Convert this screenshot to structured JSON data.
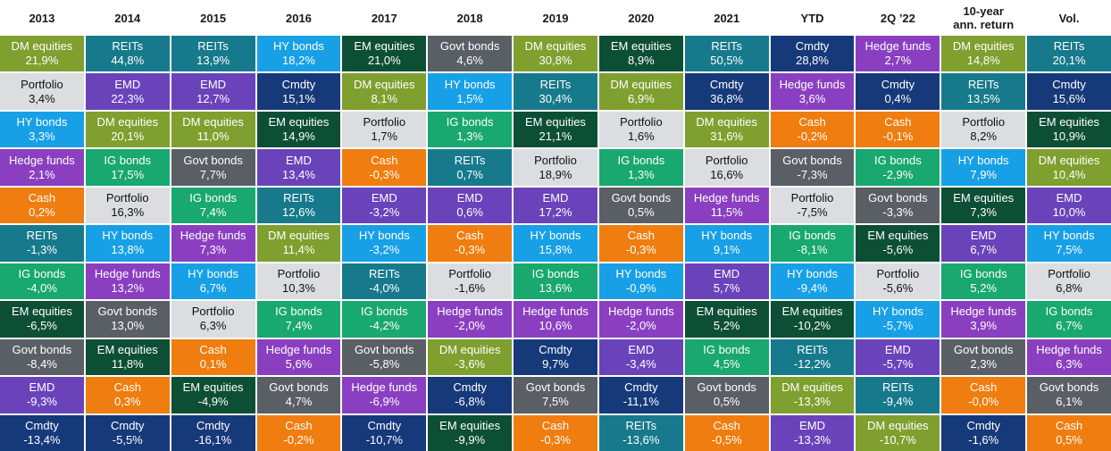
{
  "chart_data": {
    "type": "table",
    "headers": [
      "2013",
      "2014",
      "2015",
      "2016",
      "2017",
      "2018",
      "2019",
      "2020",
      "2021",
      "YTD",
      "2Q ’22",
      "10-year ann. return",
      "Vol."
    ],
    "header_lines": [
      [
        "2013"
      ],
      [
        "2014"
      ],
      [
        "2015"
      ],
      [
        "2016"
      ],
      [
        "2017"
      ],
      [
        "2018"
      ],
      [
        "2019"
      ],
      [
        "2020"
      ],
      [
        "2021"
      ],
      [
        "YTD"
      ],
      [
        "2Q ’22"
      ],
      [
        "10-year",
        "ann. return"
      ],
      [
        "Vol."
      ]
    ],
    "colors": {
      "DM equities": "#7f9f2f",
      "REITs": "#177a8c",
      "HY bonds": "#18a0e6",
      "EM equities": "#0d4f35",
      "Govt bonds": "#5a5f66",
      "Cmdty": "#16397a",
      "Hedge funds": "#8a3fc0",
      "Portfolio": "#dcdde0",
      "EMD": "#6a43bb",
      "IG bonds": "#19a86f",
      "Cash": "#ef7d0f"
    },
    "light_text_classes": [
      "Portfolio"
    ],
    "columns": [
      [
        [
          "DM equities",
          "21,9%"
        ],
        [
          "Portfolio",
          "3,4%"
        ],
        [
          "HY bonds",
          "3,3%"
        ],
        [
          "Hedge funds",
          "2,1%"
        ],
        [
          "Cash",
          "0,2%"
        ],
        [
          "REITs",
          "-1,3%"
        ],
        [
          "IG bonds",
          "-4,0%"
        ],
        [
          "EM equities",
          "-6,5%"
        ],
        [
          "Govt bonds",
          "-8,4%"
        ],
        [
          "EMD",
          "-9,3%"
        ],
        [
          "Cmdty",
          "-13,4%"
        ]
      ],
      [
        [
          "REITs",
          "44,8%"
        ],
        [
          "EMD",
          "22,3%"
        ],
        [
          "DM equities",
          "20,1%"
        ],
        [
          "IG bonds",
          "17,5%"
        ],
        [
          "Portfolio",
          "16,3%"
        ],
        [
          "HY bonds",
          "13,8%"
        ],
        [
          "Hedge funds",
          "13,2%"
        ],
        [
          "Govt bonds",
          "13,0%"
        ],
        [
          "EM equities",
          "11,8%"
        ],
        [
          "Cash",
          "0,3%"
        ],
        [
          "Cmdty",
          "-5,5%"
        ]
      ],
      [
        [
          "REITs",
          "13,9%"
        ],
        [
          "EMD",
          "12,7%"
        ],
        [
          "DM equities",
          "11,0%"
        ],
        [
          "Govt bonds",
          "7,7%"
        ],
        [
          "IG bonds",
          "7,4%"
        ],
        [
          "Hedge funds",
          "7,3%"
        ],
        [
          "HY bonds",
          "6,7%"
        ],
        [
          "Portfolio",
          "6,3%"
        ],
        [
          "Cash",
          "0,1%"
        ],
        [
          "EM equities",
          "-4,9%"
        ],
        [
          "Cmdty",
          "-16,1%"
        ]
      ],
      [
        [
          "HY bonds",
          "18,2%"
        ],
        [
          "Cmdty",
          "15,1%"
        ],
        [
          "EM equities",
          "14,9%"
        ],
        [
          "EMD",
          "13,4%"
        ],
        [
          "REITs",
          "12,6%"
        ],
        [
          "DM equities",
          "11,4%"
        ],
        [
          "Portfolio",
          "10,3%"
        ],
        [
          "IG bonds",
          "7,4%"
        ],
        [
          "Hedge funds",
          "5,6%"
        ],
        [
          "Govt bonds",
          "4,7%"
        ],
        [
          "Cash",
          "-0,2%"
        ]
      ],
      [
        [
          "EM equities",
          "21,0%"
        ],
        [
          "DM equities",
          "8,1%"
        ],
        [
          "Portfolio",
          "1,7%"
        ],
        [
          "Cash",
          "-0,3%"
        ],
        [
          "EMD",
          "-3,2%"
        ],
        [
          "HY bonds",
          "-3,2%"
        ],
        [
          "REITs",
          "-4,0%"
        ],
        [
          "IG bonds",
          "-4,2%"
        ],
        [
          "Govt bonds",
          "-5,8%"
        ],
        [
          "Hedge funds",
          "-6,9%"
        ],
        [
          "Cmdty",
          "-10,7%"
        ]
      ],
      [
        [
          "Govt bonds",
          "4,6%"
        ],
        [
          "HY bonds",
          "1,5%"
        ],
        [
          "IG bonds",
          "1,3%"
        ],
        [
          "REITs",
          "0,7%"
        ],
        [
          "EMD",
          "0,6%"
        ],
        [
          "Cash",
          "-0,3%"
        ],
        [
          "Portfolio",
          "-1,6%"
        ],
        [
          "Hedge funds",
          "-2,0%"
        ],
        [
          "DM equities",
          "-3,6%"
        ],
        [
          "Cmdty",
          "-6,8%"
        ],
        [
          "EM equities",
          "-9,9%"
        ]
      ],
      [
        [
          "DM equities",
          "30,8%"
        ],
        [
          "REITs",
          "30,4%"
        ],
        [
          "EM equities",
          "21,1%"
        ],
        [
          "Portfolio",
          "18,9%"
        ],
        [
          "EMD",
          "17,2%"
        ],
        [
          "HY bonds",
          "15,8%"
        ],
        [
          "IG bonds",
          "13,6%"
        ],
        [
          "Hedge funds",
          "10,6%"
        ],
        [
          "Cmdty",
          "9,7%"
        ],
        [
          "Govt bonds",
          "7,5%"
        ],
        [
          "Cash",
          "-0,3%"
        ]
      ],
      [
        [
          "EM equities",
          "8,9%"
        ],
        [
          "DM equities",
          "6,9%"
        ],
        [
          "Portfolio",
          "1,6%"
        ],
        [
          "IG bonds",
          "1,3%"
        ],
        [
          "Govt bonds",
          "0,5%"
        ],
        [
          "Cash",
          "-0,3%"
        ],
        [
          "HY bonds",
          "-0,9%"
        ],
        [
          "Hedge funds",
          "-2,0%"
        ],
        [
          "EMD",
          "-3,4%"
        ],
        [
          "Cmdty",
          "-11,1%"
        ],
        [
          "REITs",
          "-13,6%"
        ]
      ],
      [
        [
          "REITs",
          "50,5%"
        ],
        [
          "Cmdty",
          "36,8%"
        ],
        [
          "DM equities",
          "31,6%"
        ],
        [
          "Portfolio",
          "16,6%"
        ],
        [
          "Hedge funds",
          "11,5%"
        ],
        [
          "HY bonds",
          "9,1%"
        ],
        [
          "EMD",
          "5,7%"
        ],
        [
          "EM equities",
          "5,2%"
        ],
        [
          "IG bonds",
          "4,5%"
        ],
        [
          "Govt bonds",
          "0,5%"
        ],
        [
          "Cash",
          "-0,5%"
        ]
      ],
      [
        [
          "Cmdty",
          "28,8%"
        ],
        [
          "Hedge funds",
          "3,6%"
        ],
        [
          "Cash",
          "-0,2%"
        ],
        [
          "Govt bonds",
          "-7,3%"
        ],
        [
          "Portfolio",
          "-7,5%"
        ],
        [
          "IG bonds",
          "-8,1%"
        ],
        [
          "HY bonds",
          "-9,4%"
        ],
        [
          "EM equities",
          "-10,2%"
        ],
        [
          "REITs",
          "-12,2%"
        ],
        [
          "DM equities",
          "-13,3%"
        ],
        [
          "EMD",
          "-13,3%"
        ]
      ],
      [
        [
          "Hedge funds",
          "2,7%"
        ],
        [
          "Cmdty",
          "0,4%"
        ],
        [
          "Cash",
          "-0,1%"
        ],
        [
          "IG bonds",
          "-2,9%"
        ],
        [
          "Govt bonds",
          "-3,3%"
        ],
        [
          "EM equities",
          "-5,6%"
        ],
        [
          "Portfolio",
          "-5,6%"
        ],
        [
          "HY bonds",
          "-5,7%"
        ],
        [
          "EMD",
          "-5,7%"
        ],
        [
          "REITs",
          "-9,4%"
        ],
        [
          "DM equities",
          "-10,7%"
        ]
      ],
      [
        [
          "DM equities",
          "14,8%"
        ],
        [
          "REITs",
          "13,5%"
        ],
        [
          "Portfolio",
          "8,2%"
        ],
        [
          "HY bonds",
          "7,9%"
        ],
        [
          "EM equities",
          "7,3%"
        ],
        [
          "EMD",
          "6,7%"
        ],
        [
          "IG bonds",
          "5,2%"
        ],
        [
          "Hedge funds",
          "3,9%"
        ],
        [
          "Govt bonds",
          "2,3%"
        ],
        [
          "Cash",
          "-0,0%"
        ],
        [
          "Cmdty",
          "-1,6%"
        ]
      ],
      [
        [
          "REITs",
          "20,1%"
        ],
        [
          "Cmdty",
          "15,6%"
        ],
        [
          "EM equities",
          "10,9%"
        ],
        [
          "DM equities",
          "10,4%"
        ],
        [
          "EMD",
          "10,0%"
        ],
        [
          "HY bonds",
          "7,5%"
        ],
        [
          "Portfolio",
          "6,8%"
        ],
        [
          "IG bonds",
          "6,7%"
        ],
        [
          "Hedge funds",
          "6,3%"
        ],
        [
          "Govt bonds",
          "6,1%"
        ],
        [
          "Cash",
          "0,5%"
        ]
      ]
    ]
  }
}
